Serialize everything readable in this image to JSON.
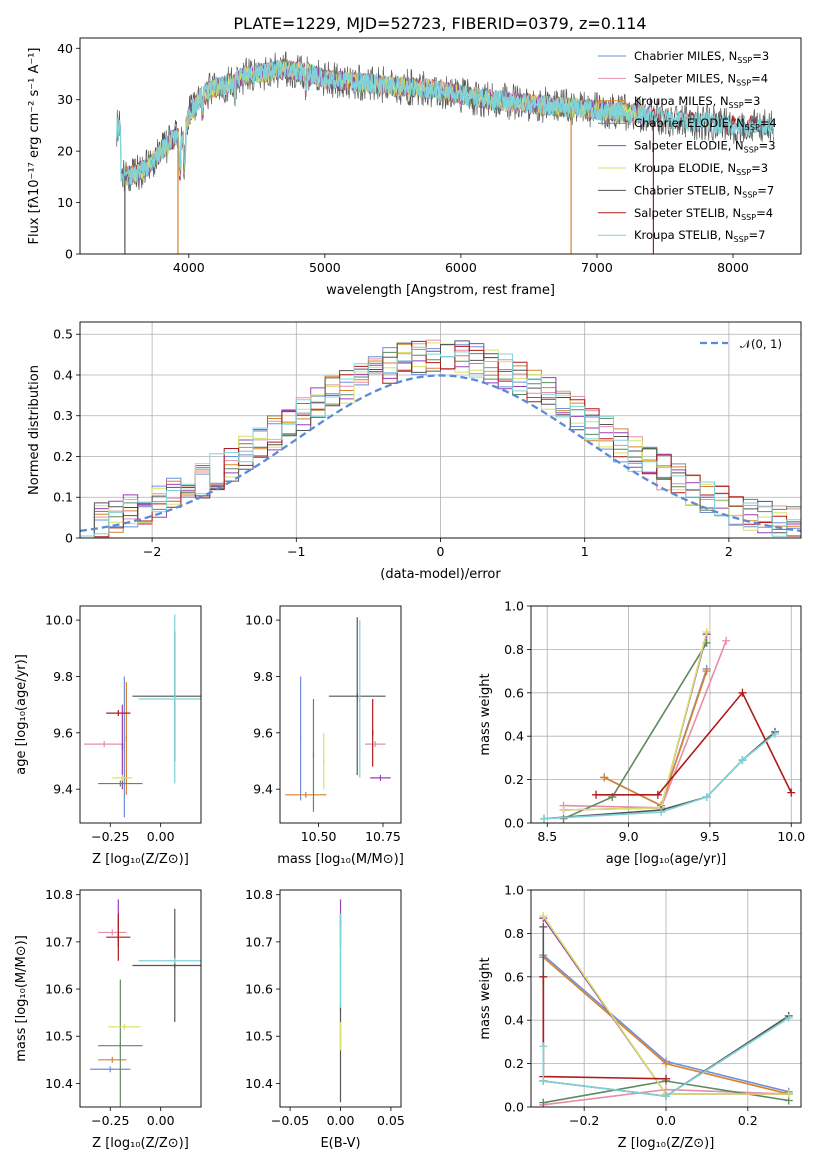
{
  "colors": {
    "Chabrier MILES": "#6f8fd9",
    "Salpeter MILES": "#e58fa9",
    "Kroupa MILES": "#d9822b",
    "Chabrier ELODIE": "#5f8a5f",
    "Salpeter ELODIE": "#9b3fb5",
    "Kroupa ELODIE": "#d8e06b",
    "Chabrier STELIB": "#555555",
    "Salpeter STELIB": "#b01a1a",
    "Kroupa STELIB": "#7fd3d8",
    "normal": "#5b8bd6"
  },
  "chart_data": [
    {
      "id": "spectrum",
      "type": "line",
      "title": "PLATE=1229, MJD=52723, FIBERID=0379, z=0.114",
      "xlabel": "wavelength [Angstrom, rest frame]",
      "ylabel": "Flux [fλ10⁻¹⁷ erg cm⁻² s⁻¹ A⁻¹]",
      "xlim": [
        3200,
        8500
      ],
      "ylim": [
        0,
        42
      ],
      "xticks": [
        4000,
        5000,
        6000,
        7000,
        8000
      ],
      "yticks": [
        0,
        10,
        20,
        30,
        40
      ],
      "legend_position": "top-right",
      "legend": [
        {
          "model": "Chabrier MILES",
          "label": "Chabrier MILES, N",
          "sub": "SSP",
          "value": "=3"
        },
        {
          "model": "Salpeter MILES",
          "label": "Salpeter MILES, N",
          "sub": "SSP",
          "value": "=4"
        },
        {
          "model": "Kroupa MILES",
          "label": "Kroupa MILES, N",
          "sub": "SSP",
          "value": "=3"
        },
        {
          "model": "Chabrier ELODIE",
          "label": "Chabrier ELODIE, N",
          "sub": "SSP",
          "value": "=4"
        },
        {
          "model": "Salpeter ELODIE",
          "label": "Salpeter ELODIE, N",
          "sub": "SSP",
          "value": "=3"
        },
        {
          "model": "Kroupa ELODIE",
          "label": "Kroupa ELODIE, N",
          "sub": "SSP",
          "value": "=3"
        },
        {
          "model": "Chabrier STELIB",
          "label": "Chabrier STELIB, N",
          "sub": "SSP",
          "value": "=7"
        },
        {
          "model": "Salpeter STELIB",
          "label": "Salpeter STELIB, N",
          "sub": "SSP",
          "value": "=4"
        },
        {
          "model": "Kroupa STELIB",
          "label": "Kroupa STELIB, N",
          "sub": "SSP",
          "value": "=7"
        }
      ],
      "continuum": [
        [
          3500,
          15
        ],
        [
          3600,
          15.5
        ],
        [
          3700,
          17
        ],
        [
          3800,
          20
        ],
        [
          3900,
          23
        ],
        [
          3950,
          22
        ],
        [
          4000,
          27
        ],
        [
          4100,
          31
        ],
        [
          4200,
          32.5
        ],
        [
          4300,
          33
        ],
        [
          4400,
          34.5
        ],
        [
          4500,
          35
        ],
        [
          4600,
          35.5
        ],
        [
          4700,
          36
        ],
        [
          4800,
          35.5
        ],
        [
          4900,
          35
        ],
        [
          5000,
          34
        ],
        [
          5200,
          33.5
        ],
        [
          5400,
          33
        ],
        [
          5600,
          32.5
        ],
        [
          5800,
          32
        ],
        [
          6000,
          31
        ],
        [
          6200,
          30
        ],
        [
          6400,
          29.5
        ],
        [
          6600,
          29
        ],
        [
          6800,
          28.5
        ],
        [
          7000,
          28
        ],
        [
          7200,
          27.5
        ],
        [
          7400,
          27
        ],
        [
          7600,
          26
        ],
        [
          7800,
          25.5
        ],
        [
          8000,
          25
        ],
        [
          8200,
          24.8
        ],
        [
          8500,
          24.5
        ]
      ],
      "features": [
        {
          "series": "Chabrier STELIB",
          "x": 3530,
          "y": 0
        },
        {
          "series": "Kroupa MILES",
          "x": 3920,
          "y": 0
        },
        {
          "series": "Kroupa MILES",
          "x": 6810,
          "y": 0
        },
        {
          "series": "Salpeter STELIB",
          "x": 7415,
          "y": 0
        }
      ]
    },
    {
      "id": "residuals",
      "type": "histogram",
      "xlabel": "(data-model)/error",
      "ylabel": "Normed distribution",
      "xlim": [
        -2.5,
        2.5
      ],
      "ylim": [
        0,
        0.53
      ],
      "xticks": [
        -2,
        -1,
        0,
        1,
        2
      ],
      "yticks": [
        0.0,
        0.1,
        0.2,
        0.3,
        0.4,
        0.5
      ],
      "bin_width": 0.1,
      "legend_position": "top-right",
      "legend": [
        {
          "label": "𝒩(0, 1)",
          "style": "dashed"
        }
      ],
      "reference": {
        "name": "𝒩(0, 1)",
        "mean": 0,
        "std": 1
      }
    },
    {
      "id": "age-vs-Z",
      "type": "errorbar",
      "xlabel": "Z [log₁₀(Z/Z⊙)]",
      "ylabel": "age  [log₁₀(age/yr)]",
      "xlim": [
        -0.4,
        0.2
      ],
      "ylim": [
        9.28,
        10.05
      ],
      "xticks": [
        -0.25,
        0.0
      ],
      "xticklabels": [
        "−0.25",
        "0.00"
      ],
      "yticks": [
        9.4,
        9.6,
        9.8,
        10.0
      ],
      "yticklabels": [
        "9.4",
        "9.6",
        "9.8",
        "10.0"
      ],
      "points": [
        {
          "model": "Chabrier MILES",
          "x": -0.18,
          "xerr": 0.0,
          "y": 9.55,
          "yerr": 0.25
        },
        {
          "model": "Salpeter MILES",
          "x": -0.28,
          "xerr": 0.1,
          "y": 9.56,
          "yerr": 0.0
        },
        {
          "model": "Kroupa MILES",
          "x": -0.17,
          "xerr": 0.0,
          "y": 9.58,
          "yerr": 0.2
        },
        {
          "model": "Chabrier ELODIE",
          "x": -0.2,
          "xerr": 0.11,
          "y": 9.42,
          "yerr": 0.0
        },
        {
          "model": "Salpeter ELODIE",
          "x": -0.19,
          "xerr": 0.0,
          "y": 9.55,
          "yerr": 0.15
        },
        {
          "model": "Kroupa ELODIE",
          "x": -0.19,
          "xerr": 0.05,
          "y": 9.44,
          "yerr": 0.0
        },
        {
          "model": "Chabrier STELIB",
          "x": 0.07,
          "xerr": 0.21,
          "y": 9.73,
          "yerr": 0.23
        },
        {
          "model": "Salpeter STELIB",
          "x": -0.21,
          "xerr": 0.06,
          "y": 9.67,
          "yerr": 0.0
        },
        {
          "model": "Kroupa STELIB",
          "x": 0.07,
          "xerr": 0.18,
          "y": 9.72,
          "yerr": 0.3
        }
      ]
    },
    {
      "id": "age-vs-mass",
      "type": "errorbar",
      "xlabel": "mass [log₁₀(M/M⊙)]",
      "ylabel": "",
      "xlim": [
        10.35,
        10.82
      ],
      "ylim": [
        9.28,
        10.05
      ],
      "xticks": [
        10.5,
        10.75
      ],
      "xticklabels": [
        "10.50",
        "10.75"
      ],
      "yticks": [
        9.4,
        9.6,
        9.8,
        10.0
      ],
      "yticklabels": [
        "9.4",
        "9.6",
        "9.8",
        "10.0"
      ],
      "points": [
        {
          "model": "Chabrier MILES",
          "x": 10.43,
          "xerr": 0.0,
          "y": 9.58,
          "yerr": 0.22
        },
        {
          "model": "Salpeter MILES",
          "x": 10.72,
          "xerr": 0.04,
          "y": 9.56,
          "yerr": 0.0
        },
        {
          "model": "Kroupa MILES",
          "x": 10.45,
          "xerr": 0.08,
          "y": 9.38,
          "yerr": 0.0
        },
        {
          "model": "Chabrier ELODIE",
          "x": 10.48,
          "xerr": 0.0,
          "y": 9.52,
          "yerr": 0.2
        },
        {
          "model": "Salpeter ELODIE",
          "x": 10.74,
          "xerr": 0.04,
          "y": 9.44,
          "yerr": 0.0
        },
        {
          "model": "Kroupa ELODIE",
          "x": 10.52,
          "xerr": 0.0,
          "y": 9.5,
          "yerr": 0.1
        },
        {
          "model": "Chabrier STELIB",
          "x": 10.65,
          "xerr": 0.11,
          "y": 9.73,
          "yerr": 0.28
        },
        {
          "model": "Salpeter STELIB",
          "x": 10.71,
          "xerr": 0.0,
          "y": 9.6,
          "yerr": 0.12
        },
        {
          "model": "Kroupa STELIB",
          "x": 10.66,
          "xerr": 0.0,
          "y": 9.72,
          "yerr": 0.28
        }
      ]
    },
    {
      "id": "weight-vs-age",
      "type": "line",
      "xlabel": "age  [log₁₀(age/yr)]",
      "ylabel": "mass weight",
      "xlim": [
        8.4,
        10.06
      ],
      "ylim": [
        0,
        1.0
      ],
      "xticks": [
        8.5,
        9.0,
        9.5,
        10.0
      ],
      "xticklabels": [
        "8.5",
        "9.0",
        "9.5",
        "10.0"
      ],
      "yticks": [
        0.0,
        0.2,
        0.4,
        0.6,
        0.8,
        1.0
      ],
      "yticklabels": [
        "0.0",
        "0.2",
        "0.4",
        "0.6",
        "0.8",
        "1.0"
      ],
      "series": [
        {
          "model": "Chabrier MILES",
          "x": [
            8.85,
            9.2,
            9.48
          ],
          "y": [
            0.21,
            0.08,
            0.71
          ]
        },
        {
          "model": "Salpeter MILES",
          "x": [
            8.6,
            9.2,
            9.6
          ],
          "y": [
            0.08,
            0.07,
            0.84
          ]
        },
        {
          "model": "Kroupa MILES",
          "x": [
            8.85,
            9.2,
            9.48
          ],
          "y": [
            0.21,
            0.08,
            0.7
          ]
        },
        {
          "model": "Chabrier ELODIE",
          "x": [
            8.6,
            8.9,
            9.48
          ],
          "y": [
            0.02,
            0.12,
            0.83
          ]
        },
        {
          "model": "Salpeter ELODIE",
          "x": [
            8.6,
            9.2,
            9.48
          ],
          "y": [
            0.06,
            0.07,
            0.87
          ]
        },
        {
          "model": "Kroupa ELODIE",
          "x": [
            8.6,
            9.2,
            9.48
          ],
          "y": [
            0.06,
            0.07,
            0.88
          ]
        },
        {
          "model": "Chabrier STELIB",
          "x": [
            8.48,
            9.2,
            9.48,
            9.7,
            9.9
          ],
          "y": [
            0.02,
            0.06,
            0.12,
            0.29,
            0.42
          ]
        },
        {
          "model": "Salpeter STELIB",
          "x": [
            8.8,
            9.18,
            9.7,
            10.0
          ],
          "y": [
            0.13,
            0.13,
            0.6,
            0.14
          ]
        },
        {
          "model": "Kroupa STELIB",
          "x": [
            8.48,
            9.2,
            9.48,
            9.7,
            9.9
          ],
          "y": [
            0.02,
            0.05,
            0.12,
            0.29,
            0.41
          ]
        }
      ]
    },
    {
      "id": "mass-vs-Z",
      "type": "errorbar",
      "xlabel": "Z [log₁₀(Z/Z⊙)]",
      "ylabel": "mass [log₁₀(M/M⊙)]",
      "xlim": [
        -0.4,
        0.2
      ],
      "ylim": [
        10.35,
        10.81
      ],
      "xticks": [
        -0.25,
        0.0
      ],
      "xticklabels": [
        "−0.25",
        "0.00"
      ],
      "yticks": [
        10.4,
        10.5,
        10.6,
        10.7,
        10.8
      ],
      "yticklabels": [
        "10.4",
        "10.5",
        "10.6",
        "10.7",
        "10.8"
      ],
      "points": [
        {
          "model": "Chabrier MILES",
          "x": -0.25,
          "xerr": 0.1,
          "y": 10.43,
          "yerr": 0.0
        },
        {
          "model": "Salpeter MILES",
          "x": -0.24,
          "xerr": 0.07,
          "y": 10.72,
          "yerr": 0.0
        },
        {
          "model": "Kroupa MILES",
          "x": -0.24,
          "xerr": 0.07,
          "y": 10.45,
          "yerr": 0.0
        },
        {
          "model": "Chabrier ELODIE",
          "x": -0.2,
          "xerr": 0.11,
          "y": 10.48,
          "yerr": 0.14
        },
        {
          "model": "Salpeter ELODIE",
          "x": -0.21,
          "xerr": 0.0,
          "y": 10.74,
          "yerr": 0.05
        },
        {
          "model": "Kroupa ELODIE",
          "x": -0.18,
          "xerr": 0.08,
          "y": 10.52,
          "yerr": 0.0
        },
        {
          "model": "Chabrier STELIB",
          "x": 0.07,
          "xerr": 0.21,
          "y": 10.65,
          "yerr": 0.12
        },
        {
          "model": "Salpeter STELIB",
          "x": -0.21,
          "xerr": 0.06,
          "y": 10.71,
          "yerr": 0.05
        },
        {
          "model": "Kroupa STELIB",
          "x": 0.07,
          "xerr": 0.18,
          "y": 10.66,
          "yerr": 0.0
        }
      ]
    },
    {
      "id": "mass-vs-EBV",
      "type": "errorbar",
      "xlabel": "E(B-V)",
      "ylabel": "",
      "xlim": [
        -0.06,
        0.06
      ],
      "ylim": [
        10.35,
        10.81
      ],
      "xticks": [
        -0.05,
        0.0,
        0.05
      ],
      "xticklabels": [
        "−0.05",
        "0.00",
        "0.05"
      ],
      "yticks": [
        10.4,
        10.5,
        10.6,
        10.7,
        10.8
      ],
      "yticklabels": [
        "10.4",
        "10.5",
        "10.6",
        "10.7",
        "10.8"
      ],
      "points": [
        {
          "model": "Salpeter ELODIE",
          "x": 0.0,
          "xerr": 0.0,
          "y": 10.74,
          "yerr": 0.05
        },
        {
          "model": "Chabrier STELIB",
          "x": 0.0,
          "xerr": 0.0,
          "y": 10.56,
          "yerr": 0.2
        },
        {
          "model": "Kroupa ELODIE",
          "x": 0.0,
          "xerr": 0.0,
          "y": 10.5,
          "yerr": 0.03
        },
        {
          "model": "Kroupa STELIB",
          "x": 0.0,
          "xerr": 0.0,
          "y": 10.66,
          "yerr": 0.1
        }
      ]
    },
    {
      "id": "weight-vs-Z",
      "type": "line",
      "xlabel": "Z [log₁₀(Z/Z⊙)]",
      "ylabel": "mass weight",
      "xlim": [
        -0.33,
        0.33
      ],
      "ylim": [
        0,
        1.0
      ],
      "xticks": [
        -0.2,
        0.0,
        0.2
      ],
      "xticklabels": [
        "−0.2",
        "0.0",
        "0.2"
      ],
      "yticks": [
        0.0,
        0.2,
        0.4,
        0.6,
        0.8,
        1.0
      ],
      "yticklabels": [
        "0.0",
        "0.2",
        "0.4",
        "0.6",
        "0.8",
        "1.0"
      ],
      "series": [
        {
          "model": "Chabrier MILES",
          "x": [
            -0.3,
            0.0,
            0.3
          ],
          "y": [
            0.7,
            0.21,
            0.07
          ]
        },
        {
          "model": "Salpeter MILES",
          "x": [
            -0.3,
            0.0,
            0.3
          ],
          "y": [
            0.01,
            0.08,
            0.06
          ]
        },
        {
          "model": "Kroupa MILES",
          "x": [
            -0.3,
            0.0,
            0.3
          ],
          "y": [
            0.69,
            0.2,
            0.06
          ]
        },
        {
          "model": "Chabrier ELODIE",
          "x": [
            -0.3,
            0.0,
            0.3
          ],
          "y": [
            0.02,
            0.12,
            0.03
          ]
        },
        {
          "model": "Salpeter ELODIE",
          "x": [
            -0.3,
            0.0,
            0.3
          ],
          "y": [
            0.87,
            0.06,
            0.06
          ]
        },
        {
          "model": "Kroupa ELODIE",
          "x": [
            -0.3,
            0.0,
            0.3
          ],
          "y": [
            0.88,
            0.06,
            0.06
          ]
        },
        {
          "model": "Chabrier STELIB",
          "x": [
            -0.3,
            -0.3,
            0.0,
            0.3
          ],
          "y": [
            0.83,
            0.12,
            0.05,
            0.42
          ]
        },
        {
          "model": "Salpeter STELIB",
          "x": [
            -0.3,
            -0.3,
            0.0
          ],
          "y": [
            0.6,
            0.14,
            0.13
          ]
        },
        {
          "model": "Kroupa STELIB",
          "x": [
            -0.3,
            -0.3,
            0.0,
            0.3
          ],
          "y": [
            0.28,
            0.12,
            0.05,
            0.41
          ]
        }
      ]
    }
  ]
}
